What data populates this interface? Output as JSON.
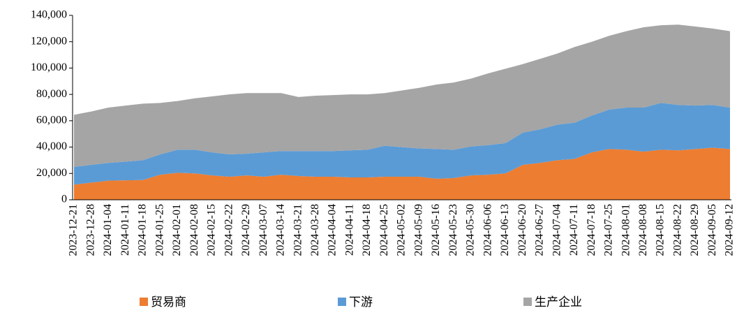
{
  "chart_data": {
    "type": "stacked-area",
    "x": [
      "2023-12-21",
      "2023-12-28",
      "2024-01-04",
      "2024-01-11",
      "2024-01-18",
      "2024-01-25",
      "2024-02-01",
      "2024-02-08",
      "2024-02-15",
      "2024-02-22",
      "2024-02-29",
      "2024-03-07",
      "2024-03-14",
      "2024-03-21",
      "2024-03-28",
      "2024-04-04",
      "2024-04-11",
      "2024-04-18",
      "2024-04-25",
      "2024-05-02",
      "2024-05-09",
      "2024-05-16",
      "2024-05-23",
      "2024-05-30",
      "2024-06-06",
      "2024-06-13",
      "2024-06-20",
      "2024-06-27",
      "2024-07-04",
      "2024-07-11",
      "2024-07-18",
      "2024-07-25",
      "2024-08-01",
      "2024-08-08",
      "2024-08-15",
      "2024-08-22",
      "2024-08-29",
      "2024-09-05",
      "2024-09-12"
    ],
    "series": [
      {
        "name": "贸易商",
        "color": "#ED7D31",
        "values": [
          11500,
          13000,
          14500,
          14800,
          15000,
          19000,
          20500,
          20000,
          18500,
          17500,
          18500,
          17500,
          19000,
          18000,
          17500,
          17500,
          17000,
          17000,
          17500,
          17500,
          17500,
          16000,
          16500,
          18500,
          19000,
          20000,
          26500,
          28000,
          30000,
          31000,
          36000,
          38500,
          38000,
          36500,
          38000,
          37500,
          38500,
          39500,
          38500
        ]
      },
      {
        "name": "下游",
        "color": "#5B9BD5",
        "values": [
          13500,
          13500,
          13500,
          14200,
          15000,
          15500,
          17500,
          18000,
          17500,
          17000,
          16500,
          18500,
          18000,
          19000,
          19500,
          19500,
          20500,
          21000,
          23500,
          22500,
          21500,
          22500,
          21500,
          22000,
          22500,
          23000,
          24500,
          25500,
          27000,
          27500,
          28000,
          30000,
          32000,
          33500,
          35500,
          34500,
          33000,
          32500,
          31500
        ]
      },
      {
        "name": "生产企业",
        "color": "#A5A5A5",
        "values": [
          39500,
          40500,
          42000,
          42500,
          43000,
          39000,
          37000,
          39000,
          42500,
          45500,
          46000,
          45000,
          44000,
          41000,
          42000,
          42500,
          42500,
          42000,
          40000,
          43000,
          46000,
          49000,
          51000,
          51500,
          54500,
          56500,
          52000,
          53500,
          54000,
          57500,
          56000,
          56000,
          58000,
          61000,
          59000,
          61000,
          60000,
          58000,
          58000
        ]
      }
    ],
    "ylim": [
      0,
      140000
    ],
    "yticks": [
      0,
      {
        "value": 20000,
        "label": "20,000"
      },
      {
        "value": 40000,
        "label": "40,000"
      },
      {
        "value": 60000,
        "label": "60,000"
      },
      {
        "value": 80000,
        "label": "80,000"
      },
      {
        "value": 100000,
        "label": "100,000"
      },
      {
        "value": 120000,
        "label": "120,000"
      },
      {
        "value": 140000,
        "label": "140,000"
      }
    ],
    "legend": "bottom"
  }
}
